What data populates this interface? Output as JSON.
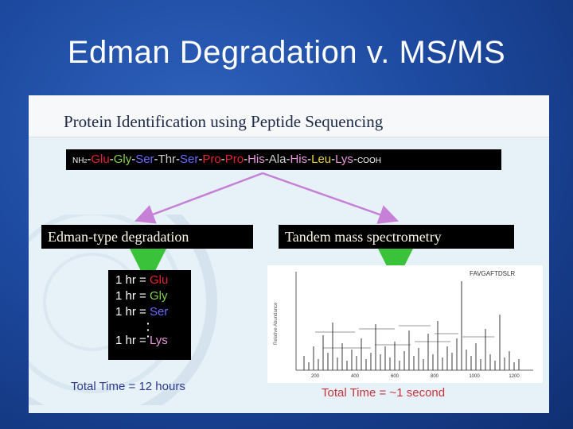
{
  "slide": {
    "title": "Edman Degradation v. MS/MS"
  },
  "panel": {
    "title": "Protein Identification using Peptide Sequencing",
    "sequence": {
      "prefix": "NH",
      "prefix_sub": "2",
      "residues": [
        {
          "name": "Glu",
          "color": "#e3232d"
        },
        {
          "name": "Gly",
          "color": "#8ad04f"
        },
        {
          "name": "Ser",
          "color": "#6a6cff"
        },
        {
          "name": "Thr",
          "color": "#cfcfcf"
        },
        {
          "name": "Ser",
          "color": "#6a6cff"
        },
        {
          "name": "Pro",
          "color": "#e3232d"
        },
        {
          "name": "Pro",
          "color": "#e3232d"
        },
        {
          "name": "His",
          "color": "#e99adf"
        },
        {
          "name": "Ala",
          "color": "#cfcfcf"
        },
        {
          "name": "His",
          "color": "#e99adf"
        },
        {
          "name": "Leu",
          "color": "#e8d43a"
        },
        {
          "name": "Lys",
          "color": "#e99adf"
        }
      ],
      "suffix": "COOH"
    },
    "edman": {
      "label": "Edman-type degradation",
      "rows": [
        {
          "time": "1 hr",
          "eq": "=",
          "residue": "Glu",
          "color": "#e3232d"
        },
        {
          "time": "1 hr",
          "eq": "=",
          "residue": "Gly",
          "color": "#8ad04f"
        },
        {
          "time": "1 hr",
          "eq": "=",
          "residue": "Ser",
          "color": "#6a6cff"
        }
      ],
      "last_row": {
        "time": "1 hr",
        "eq": "=",
        "residue": "Lys",
        "color": "#e99adf"
      },
      "total": "Total Time = 12 hours"
    },
    "msms": {
      "label": "Tandem mass spectrometry",
      "spectrum_peptide": "FAVGAFTDSLR",
      "spectrum_ylabel": "Relative Abundance",
      "x_ticks": [
        "200",
        "400",
        "600",
        "800",
        "1000",
        "1200"
      ],
      "total": "Total Time = ~1 second"
    },
    "colors": {
      "arrow_violet": "#c680d8",
      "arrow_green": "#39c23a"
    }
  }
}
